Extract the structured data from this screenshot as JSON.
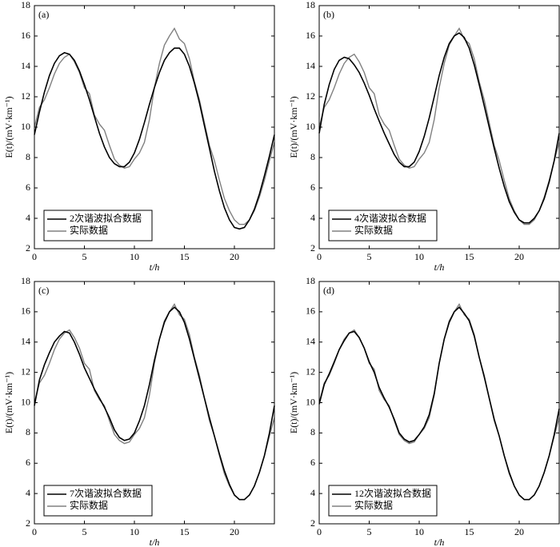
{
  "chart_data": [
    {
      "type": "line",
      "panel_label": "(a)",
      "x_label": "t/h",
      "y_label": "E(t)/(mV·km⁻¹)",
      "xlim": [
        0,
        24
      ],
      "ylim": [
        2,
        18
      ],
      "xticks": [
        0,
        5,
        10,
        15,
        20
      ],
      "yticks": [
        2,
        4,
        6,
        8,
        10,
        12,
        14,
        16,
        18
      ],
      "legend": "lower left",
      "x": [
        0,
        0.5,
        1,
        1.5,
        2,
        2.5,
        3,
        3.5,
        4,
        4.5,
        5,
        5.5,
        6,
        6.5,
        7,
        7.5,
        8,
        8.5,
        9,
        9.5,
        10,
        10.5,
        11,
        11.5,
        12,
        12.5,
        13,
        13.5,
        14,
        14.5,
        15,
        15.5,
        16,
        16.5,
        17,
        17.5,
        18,
        18.5,
        19,
        19.5,
        20,
        20.5,
        21,
        21.5,
        22,
        22.5,
        23,
        23.5,
        24
      ],
      "series": [
        {
          "name": "2次谐波拟合数据",
          "color": "#000000",
          "values": [
            9.5,
            11.0,
            12.3,
            13.4,
            14.2,
            14.7,
            14.9,
            14.8,
            14.4,
            13.7,
            12.8,
            11.8,
            10.7,
            9.6,
            8.7,
            8.0,
            7.6,
            7.4,
            7.4,
            7.7,
            8.3,
            9.2,
            10.3,
            11.5,
            12.6,
            13.6,
            14.4,
            14.9,
            15.2,
            15.2,
            14.8,
            14.0,
            12.9,
            11.6,
            10.1,
            8.6,
            7.1,
            5.8,
            4.7,
            3.9,
            3.4,
            3.3,
            3.4,
            3.9,
            4.6,
            5.6,
            6.8,
            8.1,
            9.5
          ]
        },
        {
          "name": "实际数据",
          "color": "#808080",
          "values": [
            10.0,
            11.3,
            11.8,
            12.6,
            13.5,
            14.2,
            14.6,
            14.8,
            14.3,
            13.6,
            12.6,
            12.2,
            10.8,
            10.2,
            9.8,
            8.8,
            7.9,
            7.5,
            7.3,
            7.4,
            7.9,
            8.3,
            9.0,
            10.5,
            12.6,
            14.2,
            15.4,
            16.0,
            16.5,
            15.8,
            15.5,
            14.5,
            13.0,
            11.8,
            10.3,
            8.8,
            7.8,
            6.5,
            5.3,
            4.5,
            3.9,
            3.6,
            3.6,
            3.9,
            4.5,
            5.4,
            6.5,
            7.8,
            9.0
          ]
        }
      ]
    },
    {
      "type": "line",
      "panel_label": "(b)",
      "x_label": "t/h",
      "y_label": "E(t)/(mV·km⁻¹)",
      "xlim": [
        0,
        24
      ],
      "ylim": [
        2,
        18
      ],
      "xticks": [
        0,
        5,
        10,
        15,
        20
      ],
      "yticks": [
        2,
        4,
        6,
        8,
        10,
        12,
        14,
        16,
        18
      ],
      "legend": "lower left",
      "x": [
        0,
        0.5,
        1,
        1.5,
        2,
        2.5,
        3,
        3.5,
        4,
        4.5,
        5,
        5.5,
        6,
        6.5,
        7,
        7.5,
        8,
        8.5,
        9,
        9.5,
        10,
        10.5,
        11,
        11.5,
        12,
        12.5,
        13,
        13.5,
        14,
        14.5,
        15,
        15.5,
        16,
        16.5,
        17,
        17.5,
        18,
        18.5,
        19,
        19.5,
        20,
        20.5,
        21,
        21.5,
        22,
        22.5,
        23,
        23.5,
        24
      ],
      "series": [
        {
          "name": "4次谐波拟合数据",
          "color": "#000000",
          "values": [
            9.6,
            11.5,
            12.8,
            13.8,
            14.4,
            14.6,
            14.5,
            14.1,
            13.6,
            12.9,
            12.1,
            11.2,
            10.4,
            9.6,
            8.9,
            8.2,
            7.7,
            7.4,
            7.4,
            7.7,
            8.4,
            9.4,
            10.6,
            12.0,
            13.4,
            14.6,
            15.5,
            16.0,
            16.2,
            15.9,
            15.2,
            14.1,
            12.8,
            11.4,
            10.0,
            8.6,
            7.3,
            6.1,
            5.1,
            4.4,
            3.9,
            3.7,
            3.7,
            4.0,
            4.5,
            5.3,
            6.4,
            7.8,
            9.6
          ]
        },
        {
          "name": "实际数据",
          "color": "#808080",
          "values": [
            10.0,
            11.3,
            11.8,
            12.6,
            13.5,
            14.2,
            14.6,
            14.8,
            14.3,
            13.6,
            12.6,
            12.2,
            10.8,
            10.2,
            9.8,
            8.8,
            7.9,
            7.5,
            7.3,
            7.4,
            7.9,
            8.3,
            9.0,
            10.5,
            12.6,
            14.2,
            15.4,
            16.0,
            16.5,
            15.8,
            15.5,
            14.5,
            13.0,
            11.8,
            10.3,
            8.8,
            7.8,
            6.5,
            5.3,
            4.5,
            3.9,
            3.6,
            3.6,
            3.9,
            4.5,
            5.4,
            6.5,
            7.8,
            9.0
          ]
        }
      ]
    },
    {
      "type": "line",
      "panel_label": "(c)",
      "x_label": "t/h",
      "y_label": "E(t)/(mV·km⁻¹)",
      "xlim": [
        0,
        24
      ],
      "ylim": [
        2,
        18
      ],
      "xticks": [
        0,
        5,
        10,
        15,
        20
      ],
      "yticks": [
        2,
        4,
        6,
        8,
        10,
        12,
        14,
        16,
        18
      ],
      "legend": "lower left",
      "x": [
        0,
        0.5,
        1,
        1.5,
        2,
        2.5,
        3,
        3.5,
        4,
        4.5,
        5,
        5.5,
        6,
        6.5,
        7,
        7.5,
        8,
        8.5,
        9,
        9.5,
        10,
        10.5,
        11,
        11.5,
        12,
        12.5,
        13,
        13.5,
        14,
        14.5,
        15,
        15.5,
        16,
        16.5,
        17,
        17.5,
        18,
        18.5,
        19,
        19.5,
        20,
        20.5,
        21,
        21.5,
        22,
        22.5,
        23,
        23.5,
        24
      ],
      "series": [
        {
          "name": "7次谐波拟合数据",
          "color": "#000000",
          "values": [
            9.8,
            11.5,
            12.5,
            13.3,
            14.0,
            14.4,
            14.7,
            14.6,
            14.0,
            13.2,
            12.3,
            11.6,
            10.9,
            10.3,
            9.7,
            9.0,
            8.2,
            7.7,
            7.5,
            7.6,
            8.0,
            8.8,
            9.8,
            11.2,
            12.8,
            14.2,
            15.3,
            16.0,
            16.3,
            16.0,
            15.3,
            14.2,
            12.9,
            11.6,
            10.3,
            9.0,
            7.8,
            6.6,
            5.5,
            4.6,
            3.9,
            3.6,
            3.6,
            3.9,
            4.5,
            5.4,
            6.5,
            8.0,
            9.8
          ]
        },
        {
          "name": "实际数据",
          "color": "#808080",
          "values": [
            10.0,
            11.3,
            11.8,
            12.6,
            13.5,
            14.2,
            14.6,
            14.8,
            14.3,
            13.6,
            12.6,
            12.2,
            10.8,
            10.2,
            9.8,
            8.8,
            7.9,
            7.5,
            7.3,
            7.4,
            7.9,
            8.3,
            9.0,
            10.5,
            12.6,
            14.2,
            15.4,
            16.0,
            16.5,
            15.8,
            15.5,
            14.5,
            13.0,
            11.8,
            10.3,
            8.8,
            7.8,
            6.5,
            5.3,
            4.5,
            3.9,
            3.6,
            3.6,
            3.9,
            4.5,
            5.4,
            6.5,
            7.8,
            9.0
          ]
        }
      ]
    },
    {
      "type": "line",
      "panel_label": "(d)",
      "x_label": "t/h",
      "y_label": "E(t)/(mV·km⁻¹)",
      "xlim": [
        0,
        24
      ],
      "ylim": [
        2,
        18
      ],
      "xticks": [
        0,
        5,
        10,
        15,
        20
      ],
      "yticks": [
        2,
        4,
        6,
        8,
        10,
        12,
        14,
        16,
        18
      ],
      "legend": "lower left",
      "x": [
        0,
        0.5,
        1,
        1.5,
        2,
        2.5,
        3,
        3.5,
        4,
        4.5,
        5,
        5.5,
        6,
        6.5,
        7,
        7.5,
        8,
        8.5,
        9,
        9.5,
        10,
        10.5,
        11,
        11.5,
        12,
        12.5,
        13,
        13.5,
        14,
        14.5,
        15,
        15.5,
        16,
        16.5,
        17,
        17.5,
        18,
        18.5,
        19,
        19.5,
        20,
        20.5,
        21,
        21.5,
        22,
        22.5,
        23,
        23.5,
        24
      ],
      "series": [
        {
          "name": "12次谐波拟合数据",
          "color": "#000000",
          "values": [
            9.9,
            11.2,
            11.9,
            12.7,
            13.5,
            14.1,
            14.6,
            14.7,
            14.3,
            13.6,
            12.7,
            12.0,
            11.0,
            10.3,
            9.7,
            8.9,
            8.0,
            7.6,
            7.4,
            7.5,
            7.9,
            8.4,
            9.2,
            10.6,
            12.6,
            14.2,
            15.3,
            16.0,
            16.3,
            15.9,
            15.4,
            14.4,
            13.0,
            11.7,
            10.3,
            8.9,
            7.8,
            6.5,
            5.4,
            4.5,
            3.9,
            3.6,
            3.6,
            3.9,
            4.5,
            5.4,
            6.5,
            7.9,
            9.6
          ]
        },
        {
          "name": "实际数据",
          "color": "#808080",
          "values": [
            10.0,
            11.3,
            11.8,
            12.6,
            13.5,
            14.2,
            14.6,
            14.8,
            14.3,
            13.6,
            12.6,
            12.2,
            10.8,
            10.2,
            9.8,
            8.8,
            7.9,
            7.5,
            7.3,
            7.4,
            7.9,
            8.3,
            9.0,
            10.5,
            12.6,
            14.2,
            15.4,
            16.0,
            16.5,
            15.8,
            15.5,
            14.5,
            13.0,
            11.8,
            10.3,
            8.8,
            7.8,
            6.5,
            5.3,
            4.5,
            3.9,
            3.6,
            3.6,
            3.9,
            4.5,
            5.4,
            6.5,
            7.8,
            9.0
          ]
        }
      ]
    }
  ]
}
